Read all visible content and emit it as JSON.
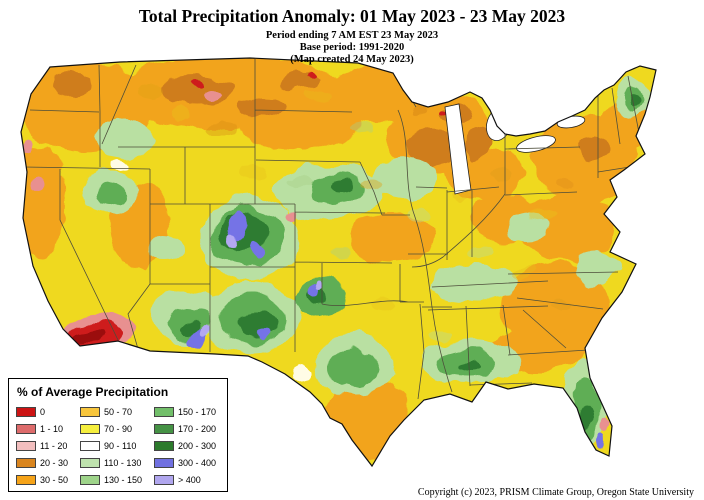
{
  "header": {
    "title": "Total Precipitation Anomaly: 01 May 2023 - 23 May 2023",
    "subtitle_period": "Period ending 7 AM EST 23 May 2023",
    "subtitle_base": "Base period: 1991-2020",
    "subtitle_created": "(Map created 24 May 2023)"
  },
  "legend": {
    "title": "% of Average Precipitation",
    "items": [
      {
        "label": "0",
        "color": "#cc1414"
      },
      {
        "label": "1 - 10",
        "color": "#dd6b6b"
      },
      {
        "label": "11 - 20",
        "color": "#f2bebe"
      },
      {
        "label": "20 - 30",
        "color": "#d9851f"
      },
      {
        "label": "30 - 50",
        "color": "#f5a318"
      },
      {
        "label": "50 - 70",
        "color": "#f8c63c"
      },
      {
        "label": "70 - 90",
        "color": "#f6ef3e"
      },
      {
        "label": "90 - 110",
        "color": "#ffffff"
      },
      {
        "label": "110 - 130",
        "color": "#bfe3ae"
      },
      {
        "label": "130 - 150",
        "color": "#9ed48a"
      },
      {
        "label": "150 - 170",
        "color": "#72bf6a"
      },
      {
        "label": "170 - 200",
        "color": "#459245"
      },
      {
        "label": "200 - 300",
        "color": "#2c7a2c"
      },
      {
        "label": "300 - 400",
        "color": "#7070e0"
      },
      {
        "label": "> 400",
        "color": "#b0a6ee"
      }
    ]
  },
  "footer": {
    "copyright": "Copyright (c) 2023, PRISM Climate Group, Oregon State University"
  }
}
